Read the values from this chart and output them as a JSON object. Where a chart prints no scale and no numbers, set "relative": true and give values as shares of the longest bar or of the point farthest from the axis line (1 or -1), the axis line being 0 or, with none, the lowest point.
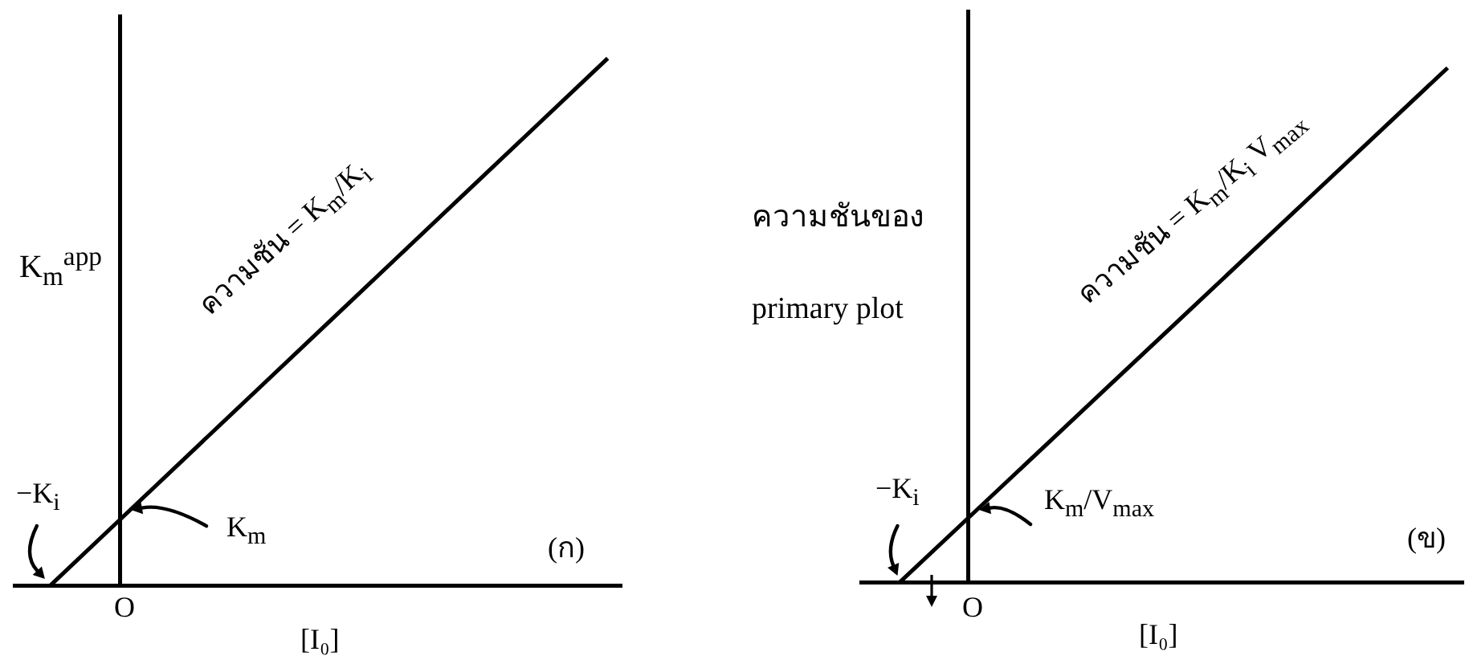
{
  "chart_data": [
    {
      "type": "line",
      "relative": true,
      "categories": [
        null,
        null,
        null,
        null,
        null,
        null,
        null,
        null,
        null
      ],
      "values": [
        0,
        0.125,
        0.25,
        0.375,
        0.5,
        0.625,
        0.75,
        0.875,
        1
      ],
      "color": "#000000",
      "marker": "none",
      "xlabel": "[I₀]",
      "ylabel": "K$_{m}$$^{app}$",
      "annotations": [
        "ความชัน = K$_{m}$/K$_{i}$",
        "−K$_{i}$",
        "K$_{m}$",
        "(ก)",
        "O"
      ]
    },
    {
      "type": "line",
      "relative": true,
      "categories": [
        null,
        null,
        null,
        null,
        null,
        null,
        null,
        null,
        null
      ],
      "values": [
        0,
        0.125,
        0.25,
        0.375,
        0.5,
        0.625,
        0.75,
        0.875,
        1
      ],
      "color": "#000000",
      "marker": "none",
      "xlabel": "[I₀]",
      "ylabel": "ความชันของ primary plot",
      "annotations": [
        "ความชัน = K$_{m}$/K$_{i}$ V$_{max}$",
        "−K$_{i}$",
        "K$_{m}$/V$_{max}$",
        "(ข)",
        "O"
      ]
    }
  ]
}
